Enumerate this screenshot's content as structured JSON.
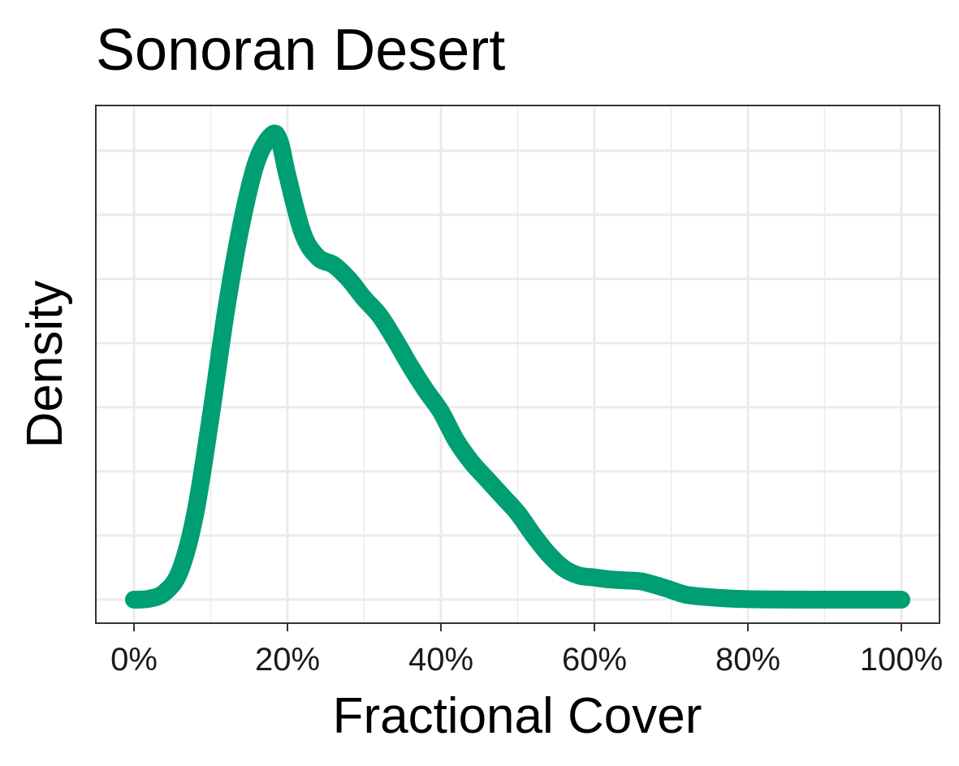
{
  "chart_data": {
    "type": "area",
    "title": "Sonoran Desert",
    "xlabel": "Fractional Cover",
    "ylabel": "Density",
    "xlim": [
      0,
      100
    ],
    "x_tick_values": [
      0,
      20,
      40,
      60,
      80,
      100
    ],
    "x_tick_labels": [
      "0%",
      "20%",
      "40%",
      "60%",
      "80%",
      "100%"
    ],
    "y_tick_labels_shown": false,
    "grid": true,
    "legend": "none",
    "line_color": "#009E73",
    "series": [
      {
        "x": [
          0,
          2,
          4,
          6,
          8,
          10,
          12,
          14,
          16,
          18,
          19,
          20,
          22,
          24,
          26,
          28,
          30,
          32,
          34,
          36,
          38,
          40,
          42,
          44,
          46,
          48,
          50,
          52,
          54,
          56,
          58,
          60,
          62,
          64,
          66,
          68,
          70,
          72,
          75,
          80,
          90,
          100
        ],
        "y": [
          0.0,
          0.2,
          1.5,
          6.0,
          18.0,
          38.0,
          60.0,
          78.0,
          91.0,
          96.5,
          95.0,
          88.0,
          76.0,
          71.0,
          69.5,
          66.5,
          62.5,
          59.0,
          54.0,
          48.5,
          43.5,
          39.0,
          33.0,
          28.5,
          25.0,
          21.5,
          18.0,
          13.5,
          9.5,
          6.5,
          5.0,
          4.6,
          4.2,
          4.0,
          3.8,
          3.0,
          2.0,
          1.0,
          0.5,
          0.1,
          0.0,
          0.0
        ]
      }
    ]
  }
}
